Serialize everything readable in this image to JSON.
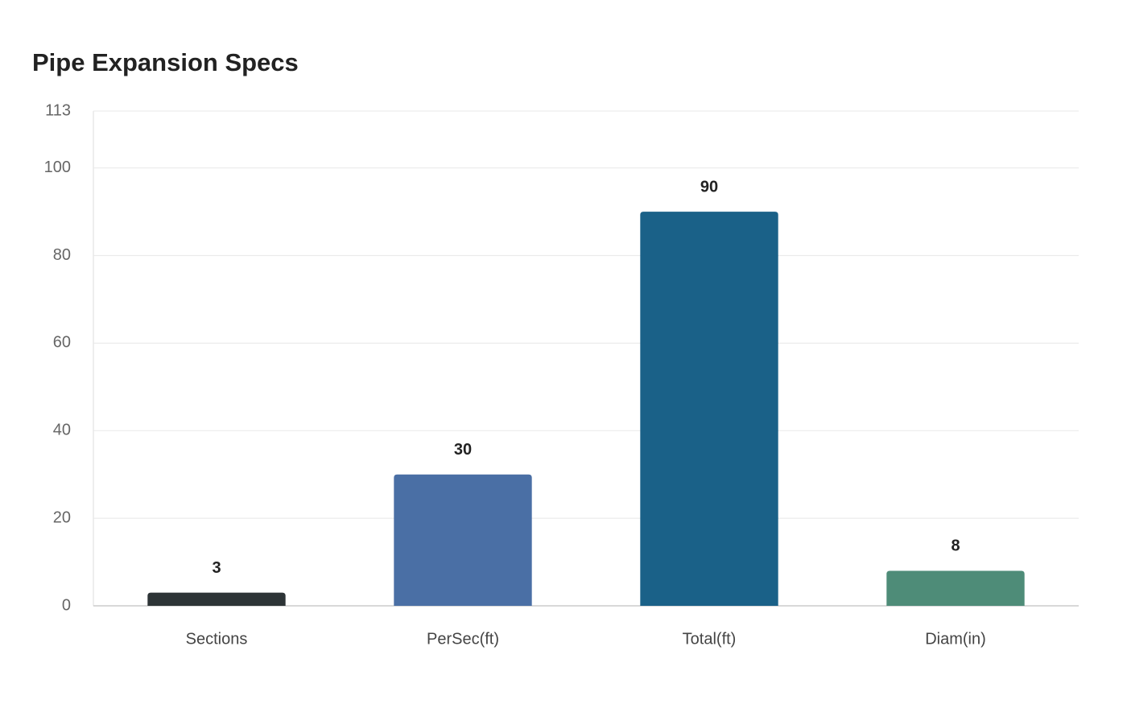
{
  "chart_data": {
    "type": "bar",
    "title": "Pipe Expansion Specs",
    "categories": [
      "Sections",
      "PerSec(ft)",
      "Total(ft)",
      "Diam(in)"
    ],
    "values": [
      3,
      30,
      90,
      8
    ],
    "colors": [
      "#2d3436",
      "#4a6fa5",
      "#1a6188",
      "#4e8c78"
    ],
    "ylim": [
      0,
      113
    ],
    "yticks": [
      0,
      20,
      40,
      60,
      80,
      100,
      113
    ],
    "grid": true
  }
}
